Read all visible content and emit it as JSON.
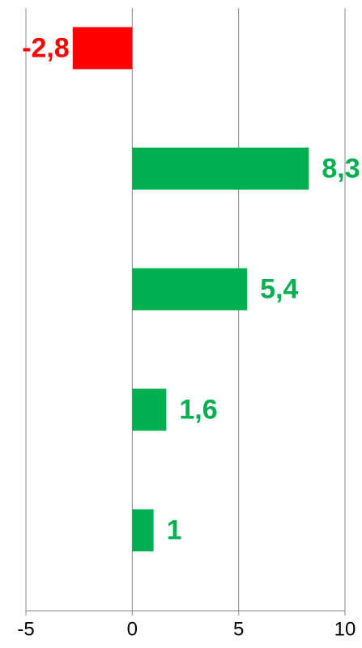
{
  "chart_data": {
    "type": "bar",
    "orientation": "horizontal",
    "categories": [
      null,
      null,
      null,
      null,
      null
    ],
    "values": [
      -2.8,
      8.3,
      5.4,
      1.6,
      1
    ],
    "value_labels": [
      "-2,8",
      "8,3",
      "5,4",
      "1,6",
      "1"
    ],
    "colors": [
      "#ff0000",
      "#00b050",
      "#00b050",
      "#00b050",
      "#00b050"
    ],
    "xlim": [
      -5,
      10
    ],
    "xticks": [
      -5,
      0,
      5,
      10
    ],
    "grid": true
  }
}
